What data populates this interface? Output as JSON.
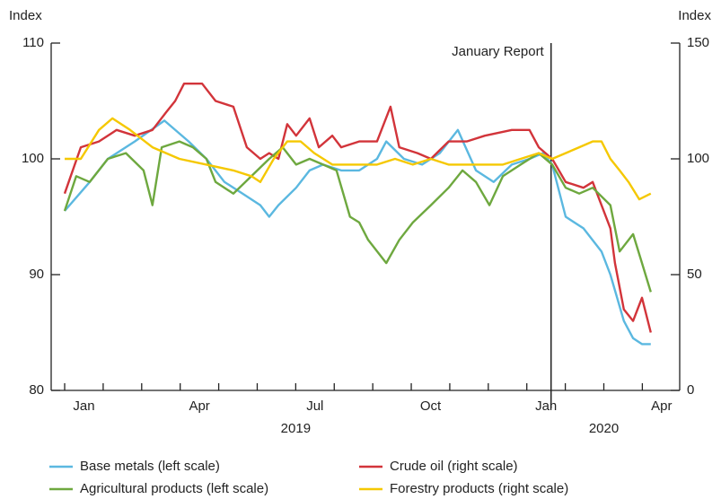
{
  "chart_data": {
    "type": "line",
    "ylabel": "Index",
    "y2label": "Index",
    "ylim": [
      80,
      110
    ],
    "yticks": [
      80,
      90,
      100,
      110
    ],
    "y2lim": [
      0,
      150
    ],
    "y2ticks": [
      0,
      50,
      100,
      150
    ],
    "xlim": [
      -0.35,
      15.97
    ],
    "xticks": [
      0,
      1,
      2,
      3,
      4,
      5,
      6,
      7,
      8,
      9,
      10,
      11,
      12,
      13,
      14,
      15
    ],
    "xtick_labels": [
      {
        "value": 0.5,
        "label": "Jan"
      },
      {
        "value": 3.5,
        "label": "Apr"
      },
      {
        "value": 6.5,
        "label": "Jul"
      },
      {
        "value": 9.5,
        "label": "Oct"
      },
      {
        "value": 12.5,
        "label": "Jan"
      },
      {
        "value": 15.5,
        "label": "Apr"
      }
    ],
    "year_labels": [
      {
        "value": 6,
        "label": "2019"
      },
      {
        "value": 14,
        "label": "2020"
      }
    ],
    "annotation": {
      "label": "January Report",
      "x": 12.63
    },
    "series": [
      {
        "name": "Base metals (left scale)",
        "color": "#5bb8e0",
        "axis": "y",
        "x": [
          0,
          0.65,
          1.12,
          1.82,
          2.59,
          3.22,
          3.68,
          4.15,
          4.62,
          5.08,
          5.31,
          5.55,
          6.01,
          6.36,
          6.71,
          7.18,
          7.65,
          8.11,
          8.35,
          8.81,
          9.28,
          9.74,
          10.21,
          10.68,
          11.14,
          11.61,
          12.07,
          12.42,
          12.66,
          13.01,
          13.47,
          13.94,
          14.17,
          14.52,
          14.76,
          14.99,
          15.22
        ],
        "values": [
          95.5,
          98,
          100,
          101.5,
          103.3,
          101.5,
          100,
          98,
          97,
          96,
          95,
          96,
          97.5,
          99,
          99.5,
          99,
          99,
          100,
          101.5,
          100,
          99.5,
          100.5,
          102.5,
          99,
          98,
          99.5,
          100,
          100.5,
          99.5,
          95,
          94,
          92,
          90,
          86,
          84.5,
          84,
          84
        ]
      },
      {
        "name": "Crude oil (right scale)",
        "color": "#d2343a",
        "axis": "y2",
        "x": [
          0,
          0.42,
          0.89,
          1.35,
          1.82,
          2.28,
          2.63,
          2.87,
          3.1,
          3.57,
          3.92,
          4.38,
          4.73,
          5.08,
          5.31,
          5.55,
          5.78,
          6.01,
          6.36,
          6.6,
          6.95,
          7.18,
          7.65,
          8.11,
          8.46,
          8.69,
          9.16,
          9.51,
          9.97,
          10.44,
          10.91,
          11.61,
          12.07,
          12.31,
          12.66,
          13.01,
          13.47,
          13.71,
          13.94,
          14.17,
          14.29,
          14.52,
          14.76,
          14.99,
          15.22
        ],
        "values": [
          85,
          105,
          107.5,
          112.5,
          110,
          112.5,
          120,
          125,
          132.5,
          132.5,
          125,
          122.5,
          105,
          100,
          102.5,
          100,
          115,
          110,
          117.5,
          105,
          110,
          105,
          107.5,
          107.5,
          122.5,
          105,
          102.5,
          100,
          107.5,
          107.5,
          110,
          112.5,
          112.5,
          105,
          100,
          90,
          87.5,
          90,
          80,
          70,
          55,
          35,
          30,
          40,
          25
        ]
      },
      {
        "name": "Agricultural products (left scale)",
        "color": "#6ea83f",
        "axis": "y",
        "x": [
          0,
          0.3,
          0.65,
          1.12,
          1.59,
          2.05,
          2.28,
          2.52,
          2.98,
          3.33,
          3.68,
          3.92,
          4.38,
          4.85,
          5.31,
          5.66,
          6.01,
          6.36,
          6.71,
          7.06,
          7.41,
          7.65,
          7.88,
          8.35,
          8.69,
          9.04,
          9.51,
          9.97,
          10.33,
          10.68,
          11.03,
          11.38,
          11.84,
          12.31,
          12.66,
          13.01,
          13.36,
          13.71,
          14.17,
          14.41,
          14.76,
          14.99,
          15.22
        ],
        "values": [
          95.5,
          98.5,
          98,
          100,
          100.5,
          99,
          96,
          101,
          101.5,
          101,
          100,
          98,
          97,
          98.5,
          100,
          101,
          99.5,
          100,
          99.5,
          99,
          95,
          94.5,
          93,
          91,
          93,
          94.5,
          96,
          97.5,
          99,
          98,
          96,
          98.5,
          99.5,
          100.5,
          99.5,
          97.5,
          97,
          97.5,
          96,
          92,
          93.5,
          91,
          88.5
        ]
      },
      {
        "name": "Forestry products (right scale)",
        "color": "#f5c800",
        "axis": "y2",
        "x": [
          0,
          0.42,
          0.89,
          1.24,
          1.7,
          2.28,
          2.98,
          3.68,
          4.38,
          4.85,
          5.08,
          5.43,
          5.78,
          6.13,
          6.48,
          6.95,
          7.41,
          8.11,
          8.58,
          9.04,
          9.51,
          9.97,
          10.68,
          11.38,
          11.84,
          12.31,
          12.66,
          13.01,
          13.36,
          13.71,
          13.94,
          14.17,
          14.41,
          14.64,
          14.92,
          15.22
        ],
        "values": [
          100,
          100,
          112.5,
          117.5,
          112.5,
          105,
          100,
          97.5,
          95,
          92.5,
          90,
          100,
          107.5,
          107.5,
          102.5,
          97.5,
          97.5,
          97.5,
          100,
          97.5,
          100,
          97.5,
          97.5,
          97.5,
          100,
          102.5,
          100,
          102.5,
          105,
          107.5,
          107.5,
          100,
          95,
          90,
          82.5,
          85
        ]
      }
    ]
  }
}
